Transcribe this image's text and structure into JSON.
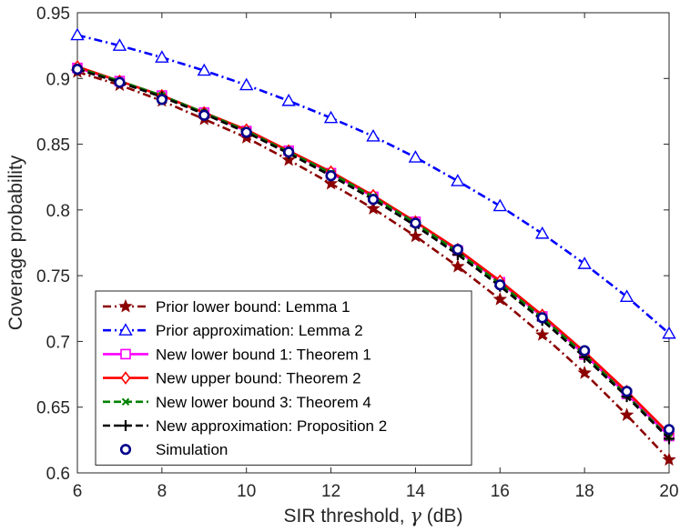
{
  "chart_data": {
    "type": "line",
    "title": "",
    "xlabel": "SIR threshold, γ (dB)",
    "xlabel_parts": {
      "prefix": "SIR threshold, ",
      "symbol": "γ",
      "suffix": " (dB)"
    },
    "ylabel": "Coverage probability",
    "xlim": [
      6,
      20
    ],
    "ylim": [
      0.6,
      0.95
    ],
    "xticks": [
      "6",
      "8",
      "10",
      "12",
      "14",
      "16",
      "18",
      "20"
    ],
    "yticks": [
      "0.6",
      "0.65",
      "0.7",
      "0.75",
      "0.8",
      "0.85",
      "0.9",
      "0.95"
    ],
    "grid": false,
    "legend_position": "bottom-left",
    "x": [
      6,
      7,
      8,
      9,
      10,
      11,
      12,
      13,
      14,
      15,
      16,
      17,
      18,
      19,
      20
    ],
    "series": [
      {
        "name": "Prior lower bound: Lemma 1",
        "color": "#8b0000",
        "dash": "dashdot",
        "marker": "star",
        "values": [
          0.905,
          0.895,
          0.883,
          0.869,
          0.855,
          0.838,
          0.82,
          0.801,
          0.78,
          0.757,
          0.732,
          0.705,
          0.676,
          0.644,
          0.61
        ]
      },
      {
        "name": "Prior approximation: Lemma 2",
        "color": "#0000ff",
        "dash": "dashdot",
        "marker": "triangle",
        "values": [
          0.933,
          0.925,
          0.916,
          0.906,
          0.895,
          0.883,
          0.87,
          0.856,
          0.84,
          0.822,
          0.803,
          0.782,
          0.759,
          0.734,
          0.706
        ]
      },
      {
        "name": "New lower bound 1: Theorem 1",
        "color": "#ff00ff",
        "dash": "solid",
        "marker": "square",
        "values": [
          0.908,
          0.898,
          0.887,
          0.874,
          0.86,
          0.845,
          0.828,
          0.81,
          0.791,
          0.769,
          0.745,
          0.719,
          0.69,
          0.66,
          0.628
        ]
      },
      {
        "name": "New upper bound: Theorem 2",
        "color": "#ff0000",
        "dash": "solid",
        "marker": "diamond",
        "values": [
          0.909,
          0.898,
          0.887,
          0.874,
          0.861,
          0.845,
          0.829,
          0.811,
          0.791,
          0.77,
          0.746,
          0.72,
          0.692,
          0.662,
          0.63
        ]
      },
      {
        "name": "New lower bound 3: Theorem 4",
        "color": "#008000",
        "dash": "dashed",
        "marker": "x",
        "values": [
          0.908,
          0.898,
          0.887,
          0.874,
          0.86,
          0.844,
          0.828,
          0.81,
          0.79,
          0.768,
          0.744,
          0.718,
          0.69,
          0.659,
          0.627
        ]
      },
      {
        "name": "New approximation: Proposition 2",
        "color": "#000000",
        "dash": "dashed",
        "marker": "plus",
        "values": [
          0.907,
          0.897,
          0.886,
          0.873,
          0.859,
          0.843,
          0.826,
          0.808,
          0.788,
          0.766,
          0.742,
          0.716,
          0.688,
          0.658,
          0.626
        ]
      },
      {
        "name": "Simulation",
        "color": "#00008b",
        "dash": "none",
        "marker": "circle",
        "values": [
          0.907,
          0.897,
          0.884,
          0.872,
          0.859,
          0.844,
          0.826,
          0.808,
          0.79,
          0.77,
          0.743,
          0.718,
          0.693,
          0.662,
          0.633
        ]
      }
    ]
  }
}
